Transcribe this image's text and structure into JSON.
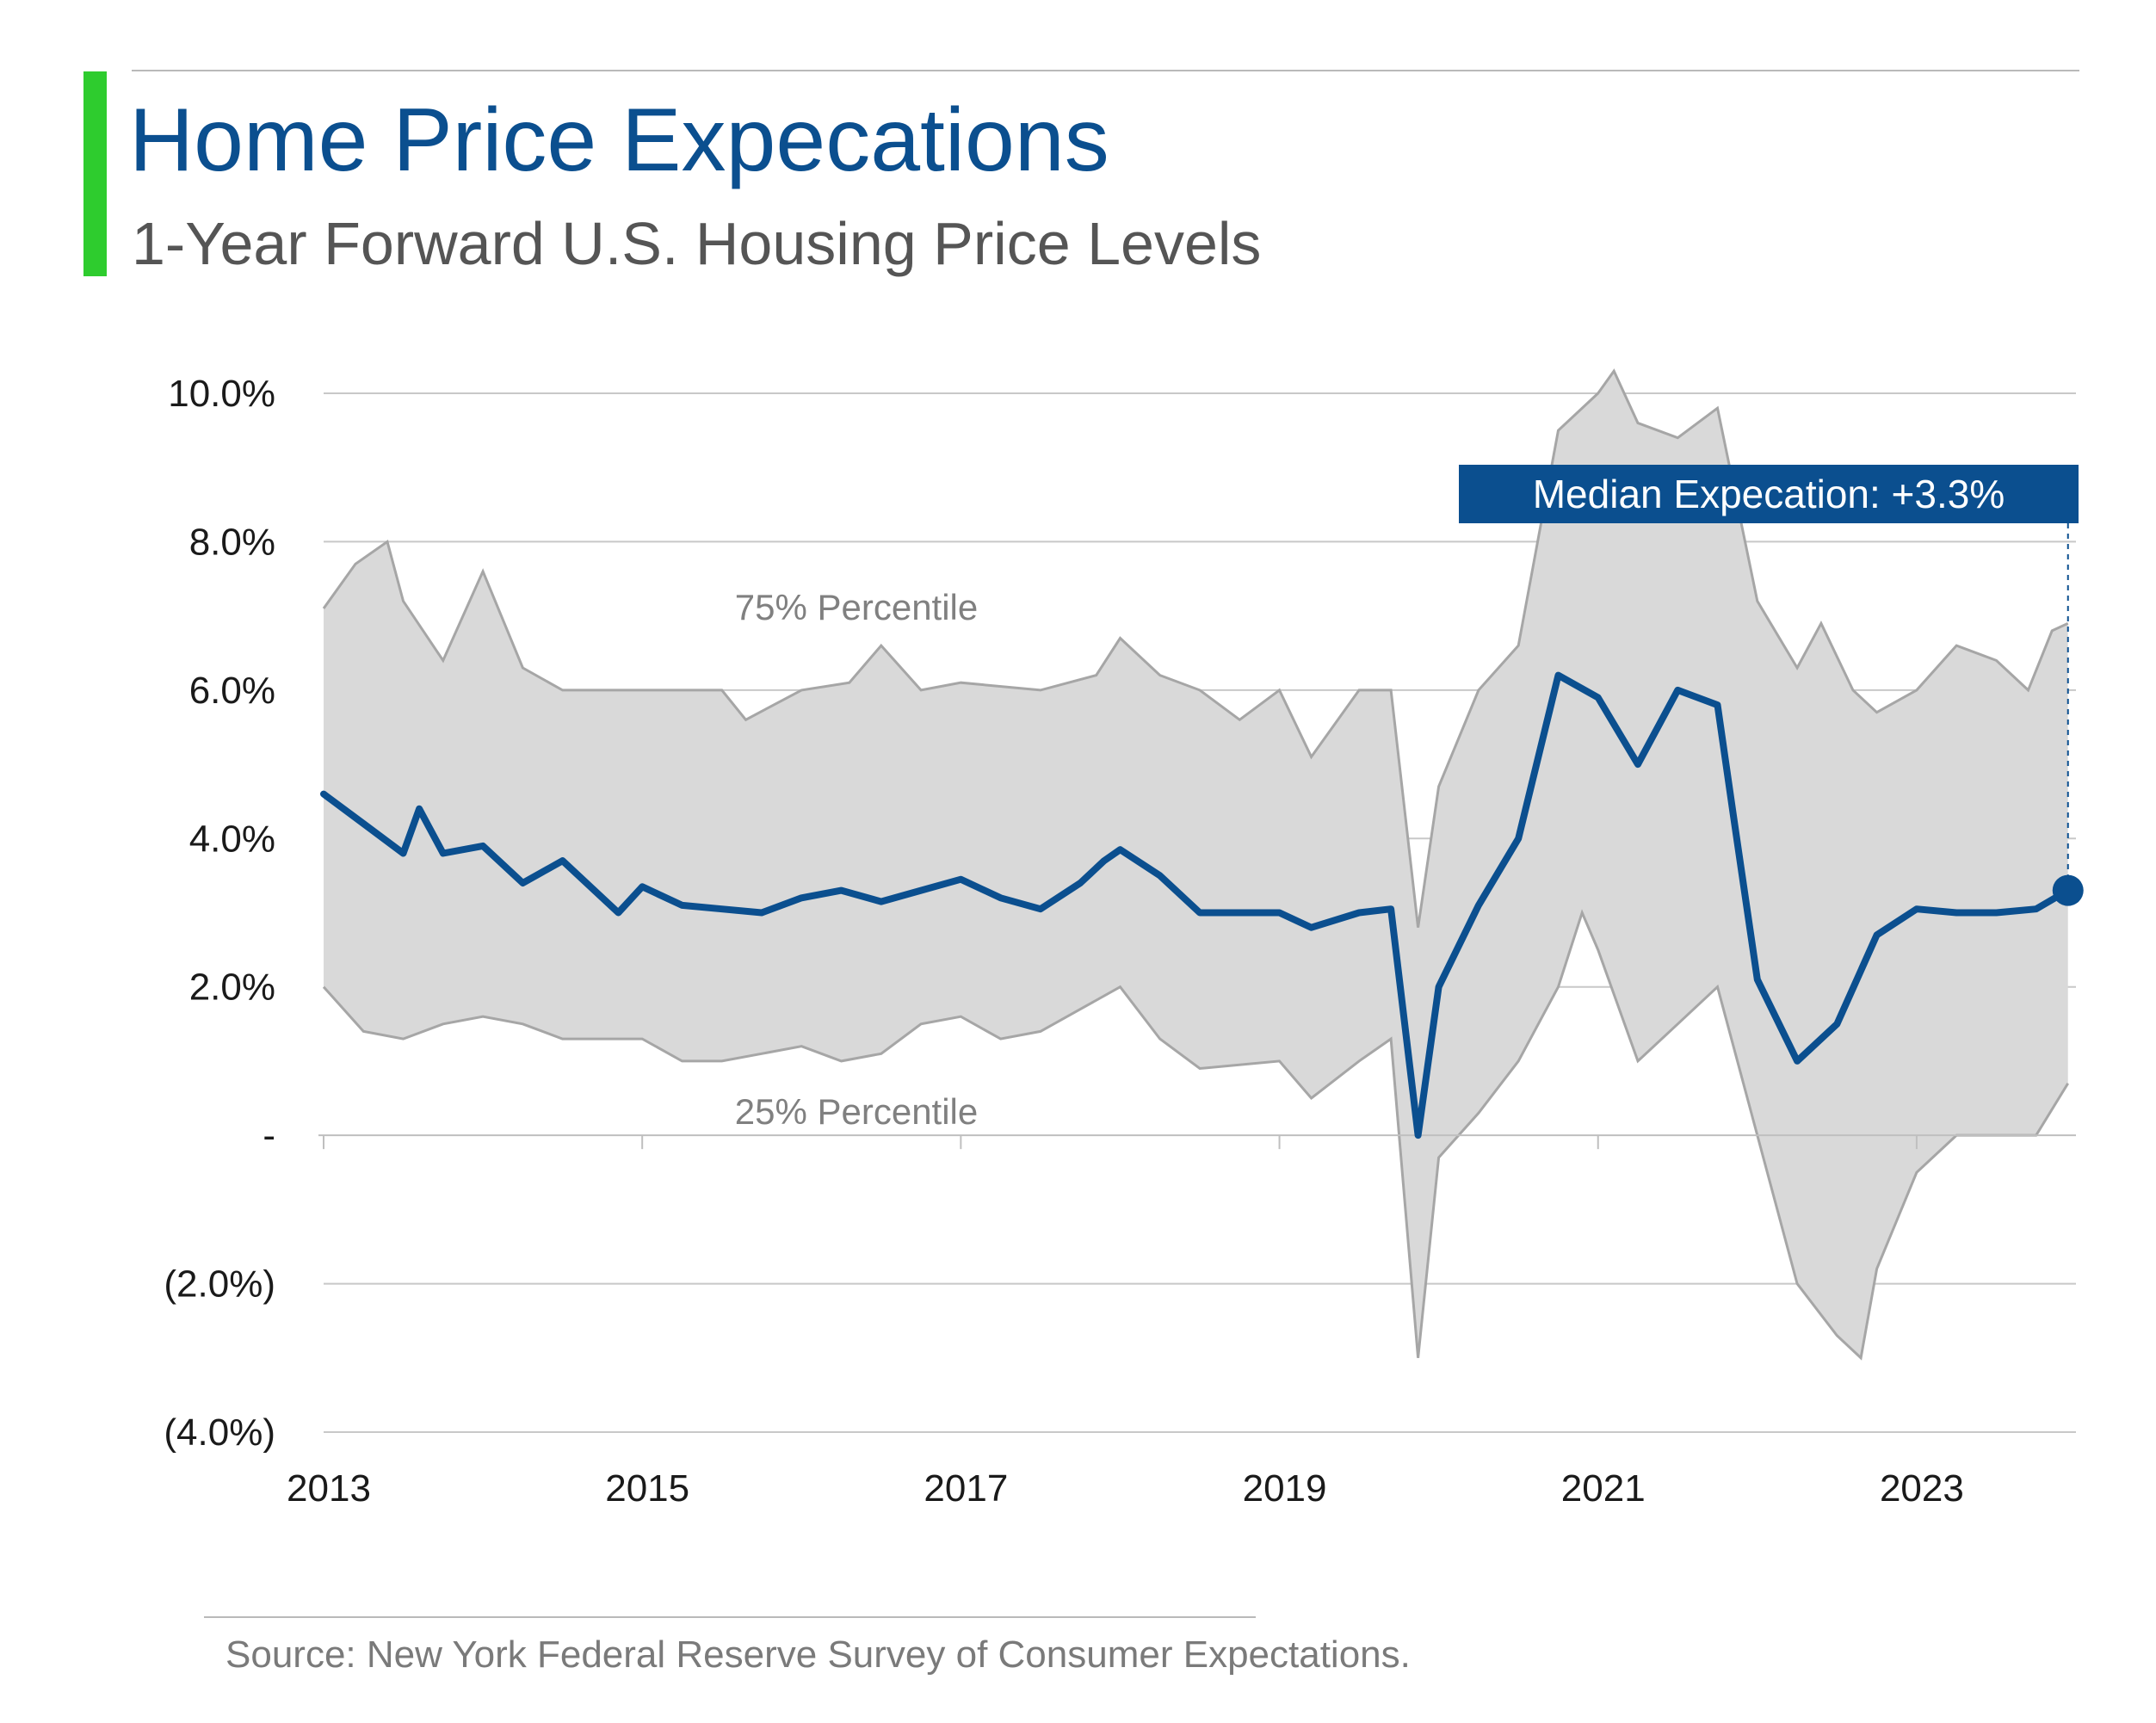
{
  "header": {
    "title": "Home Price Expecations",
    "subtitle": "1-Year Forward U.S. Housing Price Levels"
  },
  "footer": {
    "source": "Source: New York Federal Reserve Survey of Consumer Expectations."
  },
  "colors": {
    "median_line": "#0b4f8f",
    "band_fill": "#d9d9d9",
    "band_edge": "#a6a6a6",
    "accent": "#2ecc2e",
    "callout_bg": "#0b4f8f"
  },
  "chart_data": {
    "type": "area",
    "title": "Home Price Expecations",
    "subtitle": "1-Year Forward U.S. Housing Price Levels",
    "xlabel": "",
    "ylabel": "",
    "x_range": [
      2013.0,
      2024.0
    ],
    "ylim": [
      -4.0,
      10.0
    ],
    "y_ticks": [
      {
        "value": 10,
        "label": "10.0%"
      },
      {
        "value": 8,
        "label": "8.0%"
      },
      {
        "value": 6,
        "label": "6.0%"
      },
      {
        "value": 4,
        "label": "4.0%"
      },
      {
        "value": 2,
        "label": "2.0%"
      },
      {
        "value": 0,
        "label": "-"
      },
      {
        "value": -2,
        "label": "(2.0%)"
      },
      {
        "value": -4,
        "label": "(4.0%)"
      }
    ],
    "x_ticks": [
      {
        "value": 2013,
        "label": "2013"
      },
      {
        "value": 2015,
        "label": "2015"
      },
      {
        "value": 2017,
        "label": "2017"
      },
      {
        "value": 2019,
        "label": "2019"
      },
      {
        "value": 2021,
        "label": "2021"
      },
      {
        "value": 2023,
        "label": "2023"
      }
    ],
    "grid": true,
    "annotations": {
      "upper_label": "75% Percentile",
      "lower_label": "25% Percentile",
      "callout": "Median Expecation: +3.3%"
    },
    "series": [
      {
        "role": "median",
        "points": [
          [
            2013.0,
            4.6
          ],
          [
            2013.25,
            4.2
          ],
          [
            2013.5,
            3.8
          ],
          [
            2013.6,
            4.4
          ],
          [
            2013.75,
            3.8
          ],
          [
            2014.0,
            3.9
          ],
          [
            2014.25,
            3.4
          ],
          [
            2014.5,
            3.7
          ],
          [
            2014.85,
            3.0
          ],
          [
            2015.0,
            3.35
          ],
          [
            2015.25,
            3.1
          ],
          [
            2015.5,
            3.05
          ],
          [
            2015.75,
            3.0
          ],
          [
            2016.0,
            3.2
          ],
          [
            2016.25,
            3.3
          ],
          [
            2016.5,
            3.15
          ],
          [
            2016.75,
            3.3
          ],
          [
            2017.0,
            3.45
          ],
          [
            2017.25,
            3.2
          ],
          [
            2017.5,
            3.05
          ],
          [
            2017.75,
            3.4
          ],
          [
            2017.9,
            3.7
          ],
          [
            2018.0,
            3.85
          ],
          [
            2018.25,
            3.5
          ],
          [
            2018.5,
            3.0
          ],
          [
            2019.0,
            3.0
          ],
          [
            2019.2,
            2.8
          ],
          [
            2019.5,
            3.0
          ],
          [
            2019.7,
            3.05
          ],
          [
            2019.87,
            0.0
          ],
          [
            2020.0,
            2.0
          ],
          [
            2020.25,
            3.1
          ],
          [
            2020.5,
            4.0
          ],
          [
            2020.75,
            6.2
          ],
          [
            2021.0,
            5.9
          ],
          [
            2021.25,
            5.0
          ],
          [
            2021.5,
            6.0
          ],
          [
            2021.75,
            5.8
          ],
          [
            2021.85,
            4.3
          ],
          [
            2022.0,
            2.1
          ],
          [
            2022.25,
            1.0
          ],
          [
            2022.5,
            1.5
          ],
          [
            2022.75,
            2.7
          ],
          [
            2023.0,
            3.05
          ],
          [
            2023.25,
            3.0
          ],
          [
            2023.5,
            3.0
          ],
          [
            2023.75,
            3.05
          ],
          [
            2023.95,
            3.3
          ]
        ]
      },
      {
        "role": "p75",
        "points": [
          [
            2013.0,
            7.1
          ],
          [
            2013.2,
            7.7
          ],
          [
            2013.4,
            8.0
          ],
          [
            2013.5,
            7.2
          ],
          [
            2013.75,
            6.4
          ],
          [
            2014.0,
            7.6
          ],
          [
            2014.25,
            6.3
          ],
          [
            2014.5,
            6.0
          ],
          [
            2015.0,
            6.0
          ],
          [
            2015.5,
            6.0
          ],
          [
            2015.65,
            5.6
          ],
          [
            2016.0,
            6.0
          ],
          [
            2016.3,
            6.1
          ],
          [
            2016.5,
            6.6
          ],
          [
            2016.75,
            6.0
          ],
          [
            2017.0,
            6.1
          ],
          [
            2017.5,
            6.0
          ],
          [
            2017.85,
            6.2
          ],
          [
            2018.0,
            6.7
          ],
          [
            2018.25,
            6.2
          ],
          [
            2018.5,
            6.0
          ],
          [
            2018.75,
            5.6
          ],
          [
            2019.0,
            6.0
          ],
          [
            2019.2,
            5.1
          ],
          [
            2019.5,
            6.0
          ],
          [
            2019.7,
            6.0
          ],
          [
            2019.87,
            2.8
          ],
          [
            2020.0,
            4.7
          ],
          [
            2020.25,
            6.0
          ],
          [
            2020.5,
            6.6
          ],
          [
            2020.75,
            9.5
          ],
          [
            2021.0,
            10.0
          ],
          [
            2021.1,
            10.3
          ],
          [
            2021.25,
            9.6
          ],
          [
            2021.5,
            9.4
          ],
          [
            2021.75,
            9.8
          ],
          [
            2022.0,
            7.2
          ],
          [
            2022.25,
            6.3
          ],
          [
            2022.4,
            6.9
          ],
          [
            2022.6,
            6.0
          ],
          [
            2022.75,
            5.7
          ],
          [
            2023.0,
            6.0
          ],
          [
            2023.25,
            6.6
          ],
          [
            2023.5,
            6.4
          ],
          [
            2023.7,
            6.0
          ],
          [
            2023.85,
            6.8
          ],
          [
            2023.95,
            6.9
          ]
        ]
      },
      {
        "role": "p25",
        "points": [
          [
            2013.0,
            2.0
          ],
          [
            2013.25,
            1.4
          ],
          [
            2013.5,
            1.3
          ],
          [
            2013.75,
            1.5
          ],
          [
            2014.0,
            1.6
          ],
          [
            2014.25,
            1.5
          ],
          [
            2014.5,
            1.3
          ],
          [
            2015.0,
            1.3
          ],
          [
            2015.25,
            1.0
          ],
          [
            2015.5,
            1.0
          ],
          [
            2016.0,
            1.2
          ],
          [
            2016.25,
            1.0
          ],
          [
            2016.5,
            1.1
          ],
          [
            2016.75,
            1.5
          ],
          [
            2017.0,
            1.6
          ],
          [
            2017.25,
            1.3
          ],
          [
            2017.5,
            1.4
          ],
          [
            2017.75,
            1.7
          ],
          [
            2018.0,
            2.0
          ],
          [
            2018.25,
            1.3
          ],
          [
            2018.5,
            0.9
          ],
          [
            2019.0,
            1.0
          ],
          [
            2019.2,
            0.5
          ],
          [
            2019.5,
            1.0
          ],
          [
            2019.7,
            1.3
          ],
          [
            2019.87,
            -3.0
          ],
          [
            2020.0,
            -0.3
          ],
          [
            2020.25,
            0.3
          ],
          [
            2020.5,
            1.0
          ],
          [
            2020.75,
            2.0
          ],
          [
            2020.9,
            3.0
          ],
          [
            2021.0,
            2.5
          ],
          [
            2021.25,
            1.0
          ],
          [
            2021.5,
            1.5
          ],
          [
            2021.75,
            2.0
          ],
          [
            2022.0,
            0.0
          ],
          [
            2022.25,
            -2.0
          ],
          [
            2022.5,
            -2.7
          ],
          [
            2022.65,
            -3.0
          ],
          [
            2022.75,
            -1.8
          ],
          [
            2023.0,
            -0.5
          ],
          [
            2023.25,
            0.0
          ],
          [
            2023.5,
            0.0
          ],
          [
            2023.75,
            0.0
          ],
          [
            2023.95,
            0.7
          ]
        ]
      }
    ],
    "highlight_point": {
      "x": 2023.95,
      "y": 3.3
    }
  }
}
